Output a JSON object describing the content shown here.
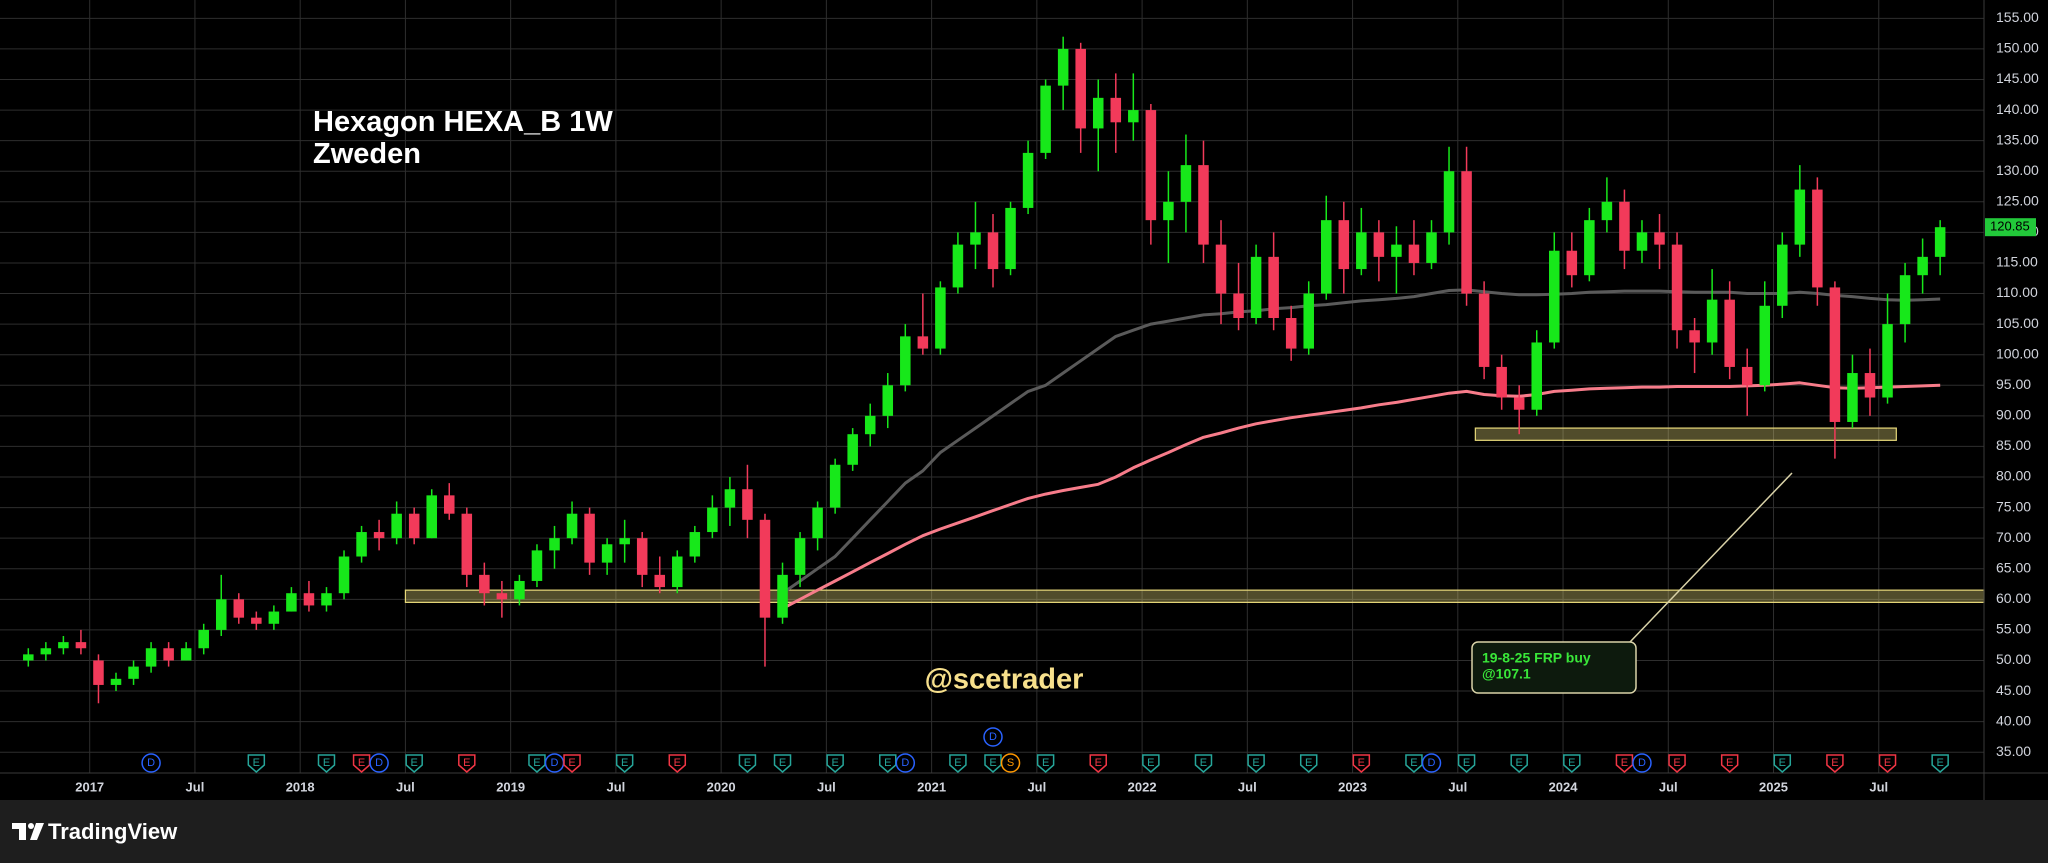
{
  "chart_data": {
    "type": "candlestick",
    "title": "Hexagon HEXA_B 1W",
    "subtitle": "Zweden",
    "watermark": "@scetrader",
    "x": [
      "2016-09",
      "2016-10",
      "2016-11",
      "2016-12",
      "2017-01",
      "2017-02",
      "2017-03",
      "2017-04",
      "2017-05",
      "2017-06",
      "2017-07",
      "2017-08",
      "2017-09",
      "2017-10",
      "2017-11",
      "2017-12",
      "2018-01",
      "2018-02",
      "2018-03",
      "2018-04",
      "2018-05",
      "2018-06",
      "2018-07",
      "2018-08",
      "2018-09",
      "2018-10",
      "2018-11",
      "2018-12",
      "2019-01",
      "2019-02",
      "2019-03",
      "2019-04",
      "2019-05",
      "2019-06",
      "2019-07",
      "2019-08",
      "2019-09",
      "2019-10",
      "2019-11",
      "2019-12",
      "2020-01",
      "2020-02",
      "2020-03",
      "2020-04",
      "2020-05",
      "2020-06",
      "2020-07",
      "2020-08",
      "2020-09",
      "2020-10",
      "2020-11",
      "2020-12",
      "2021-01",
      "2021-02",
      "2021-03",
      "2021-04",
      "2021-05",
      "2021-06",
      "2021-07",
      "2021-08",
      "2021-09",
      "2021-10",
      "2021-11",
      "2021-12",
      "2022-01",
      "2022-02",
      "2022-03",
      "2022-04",
      "2022-05",
      "2022-06",
      "2022-07",
      "2022-08",
      "2022-09",
      "2022-10",
      "2022-11",
      "2022-12",
      "2023-01",
      "2023-02",
      "2023-03",
      "2023-04",
      "2023-05",
      "2023-06",
      "2023-07",
      "2023-08",
      "2023-09",
      "2023-10",
      "2023-11",
      "2023-12",
      "2024-01",
      "2024-02",
      "2024-03",
      "2024-04",
      "2024-05",
      "2024-06",
      "2024-07",
      "2024-08",
      "2024-09",
      "2024-10",
      "2024-11",
      "2024-12",
      "2025-01",
      "2025-02",
      "2025-03",
      "2025-04",
      "2025-05",
      "2025-06",
      "2025-07",
      "2025-08",
      "2025-09",
      "2025-10"
    ],
    "open": [
      50,
      51,
      52,
      53,
      50,
      46,
      47,
      49,
      52,
      50,
      52,
      55,
      60,
      57,
      56,
      58,
      61,
      59,
      61,
      67,
      71,
      70,
      74,
      70,
      77,
      74,
      64,
      61,
      60,
      63,
      68,
      70,
      74,
      66,
      69,
      70,
      64,
      62,
      67,
      71,
      75,
      78,
      73,
      57,
      64,
      70,
      75,
      82,
      87,
      90,
      95,
      103,
      101,
      111,
      118,
      120,
      114,
      124,
      133,
      144,
      150,
      137,
      142,
      138,
      140,
      122,
      125,
      131,
      118,
      110,
      106,
      116,
      106,
      101,
      110,
      122,
      114,
      120,
      116,
      118,
      115,
      120,
      130,
      110,
      98,
      93,
      91,
      102,
      117,
      113,
      122,
      125,
      117,
      120,
      118,
      104,
      102,
      109,
      98,
      95,
      108,
      118,
      127,
      111,
      89,
      97,
      93,
      105,
      113,
      116
    ],
    "high": [
      52,
      53,
      54,
      55,
      51,
      48,
      50,
      53,
      53,
      53,
      56,
      64,
      61,
      58,
      59,
      62,
      63,
      62,
      68,
      72,
      73,
      76,
      75,
      78,
      79,
      75,
      66,
      63,
      64,
      69,
      72,
      76,
      75,
      70,
      73,
      71,
      67,
      68,
      72,
      77,
      80,
      82,
      74,
      66,
      71,
      76,
      83,
      88,
      92,
      97,
      105,
      110,
      112,
      120,
      125,
      123,
      125,
      135,
      145,
      152,
      151,
      145,
      146,
      146,
      141,
      130,
      136,
      135,
      122,
      115,
      118,
      120,
      108,
      112,
      126,
      125,
      124,
      122,
      121,
      122,
      122,
      134,
      134,
      112,
      100,
      95,
      104,
      120,
      120,
      124,
      129,
      127,
      122,
      123,
      120,
      106,
      114,
      112,
      101,
      112,
      120,
      131,
      129,
      112,
      100,
      101,
      110,
      115,
      119,
      122
    ],
    "low": [
      49,
      50,
      51,
      51,
      43,
      45,
      46,
      48,
      49,
      50,
      51,
      54,
      56,
      55,
      55,
      58,
      58,
      58,
      60,
      66,
      68,
      69,
      69,
      70,
      73,
      62,
      59,
      57,
      59,
      62,
      65,
      69,
      64,
      64,
      66,
      62,
      61,
      61,
      66,
      70,
      72,
      70,
      49,
      56,
      62,
      68,
      74,
      81,
      85,
      88,
      94,
      100,
      100,
      110,
      114,
      111,
      113,
      123,
      132,
      140,
      133,
      130,
      133,
      135,
      118,
      115,
      120,
      115,
      105,
      104,
      105,
      104,
      99,
      100,
      109,
      110,
      113,
      112,
      110,
      113,
      114,
      118,
      108,
      96,
      91,
      87,
      90,
      101,
      111,
      112,
      120,
      114,
      115,
      114,
      101,
      97,
      100,
      96,
      90,
      94,
      106,
      116,
      108,
      83,
      88,
      90,
      92,
      102,
      110,
      113
    ],
    "close": [
      51,
      52,
      53,
      52,
      46,
      47,
      49,
      52,
      50,
      52,
      55,
      60,
      57,
      56,
      58,
      61,
      59,
      61,
      67,
      71,
      70,
      74,
      70,
      77,
      74,
      64,
      61,
      60,
      63,
      68,
      70,
      74,
      66,
      69,
      70,
      64,
      62,
      67,
      71,
      75,
      78,
      73,
      57,
      64,
      70,
      75,
      82,
      87,
      90,
      95,
      103,
      101,
      111,
      118,
      120,
      114,
      124,
      133,
      144,
      150,
      137,
      142,
      138,
      140,
      122,
      125,
      131,
      118,
      110,
      106,
      116,
      106,
      101,
      110,
      122,
      114,
      120,
      116,
      118,
      115,
      120,
      130,
      110,
      98,
      93,
      91,
      102,
      117,
      113,
      122,
      125,
      117,
      120,
      118,
      104,
      102,
      109,
      98,
      95,
      108,
      118,
      127,
      111,
      89,
      97,
      93,
      105,
      113,
      116,
      120.85
    ],
    "up_color": "#17e81a",
    "down_color": "#f23a5a",
    "series": [
      {
        "color": "#5a5a5a",
        "values": [
          null,
          null,
          null,
          null,
          null,
          null,
          null,
          null,
          null,
          null,
          null,
          null,
          null,
          null,
          null,
          null,
          null,
          null,
          null,
          null,
          null,
          null,
          null,
          null,
          null,
          null,
          null,
          null,
          null,
          null,
          null,
          null,
          null,
          null,
          null,
          null,
          null,
          null,
          null,
          null,
          null,
          null,
          null,
          61,
          63,
          65,
          67,
          70,
          73,
          76,
          79,
          81,
          84,
          86,
          88,
          90,
          92,
          94,
          95,
          97,
          99,
          101,
          103,
          104,
          105,
          105.5,
          106,
          106.5,
          106.7,
          107,
          107.2,
          107.5,
          107.7,
          108,
          108.2,
          108.5,
          108.8,
          109,
          109.2,
          109.5,
          110,
          110.5,
          110.6,
          110.3,
          110,
          109.8,
          109.8,
          109.9,
          110,
          110.2,
          110.3,
          110.4,
          110.4,
          110.4,
          110.3,
          110.2,
          110.2,
          110.2,
          110,
          110,
          110,
          110.2,
          110,
          109.7,
          109.5,
          109.2,
          109,
          108.9,
          109,
          109.1
        ]
      },
      {
        "color": "#f77c8a",
        "values": [
          null,
          null,
          null,
          null,
          null,
          null,
          null,
          null,
          null,
          null,
          null,
          null,
          null,
          null,
          null,
          null,
          null,
          null,
          null,
          null,
          null,
          null,
          null,
          null,
          null,
          null,
          null,
          null,
          null,
          null,
          null,
          null,
          null,
          null,
          null,
          null,
          null,
          null,
          null,
          null,
          null,
          null,
          null,
          58.5,
          60,
          61.5,
          63,
          64.5,
          66,
          67.5,
          69,
          70.4,
          71.5,
          72.5,
          73.5,
          74.5,
          75.5,
          76.5,
          77.2,
          77.8,
          78.3,
          78.8,
          80,
          81.5,
          82.8,
          84,
          85.3,
          86.5,
          87.2,
          88,
          88.7,
          89.2,
          89.7,
          90.1,
          90.5,
          90.9,
          91.3,
          91.8,
          92.2,
          92.7,
          93.2,
          93.7,
          94,
          93.5,
          93.3,
          93.2,
          93.5,
          94,
          94.2,
          94.4,
          94.5,
          94.6,
          94.7,
          94.7,
          94.8,
          94.8,
          94.8,
          94.8,
          94.9,
          95,
          95.2,
          95.4,
          95,
          94.6,
          94.5,
          94.6,
          94.7,
          94.8,
          94.9,
          95
        ]
      }
    ],
    "zones": [
      {
        "x": [
          "2018-07",
          "2026-01"
        ],
        "y": [
          59.5,
          61.5
        ],
        "color": "#e8d97a"
      },
      {
        "x": [
          "2023-08",
          "2025-08"
        ],
        "y": [
          86,
          88
        ],
        "color": "#e8d97a"
      }
    ],
    "annotations": [
      {
        "lines": [
          "19-8-25 FRP buy",
          "@107.1"
        ],
        "color": "#39e639"
      }
    ],
    "events": [
      {
        "x": "2017-04",
        "label": "D",
        "color": "#2962ff"
      },
      {
        "x": "2017-10",
        "label": "E",
        "color": "#26a69a"
      },
      {
        "x": "2018-02",
        "label": "E",
        "color": "#26a69a"
      },
      {
        "x": "2018-04",
        "label": "E",
        "color": "#f23645"
      },
      {
        "x": "2018-05",
        "label": "D",
        "color": "#2962ff"
      },
      {
        "x": "2018-07",
        "label": "E",
        "color": "#26a69a"
      },
      {
        "x": "2018-10",
        "label": "E",
        "color": "#f23645"
      },
      {
        "x": "2019-02",
        "label": "E",
        "color": "#26a69a"
      },
      {
        "x": "2019-03",
        "label": "D",
        "color": "#2962ff"
      },
      {
        "x": "2019-04",
        "label": "E",
        "color": "#f23645"
      },
      {
        "x": "2019-07",
        "label": "E",
        "color": "#26a69a"
      },
      {
        "x": "2019-10",
        "label": "E",
        "color": "#f23645"
      },
      {
        "x": "2020-02",
        "label": "E",
        "color": "#26a69a"
      },
      {
        "x": "2020-04",
        "label": "E",
        "color": "#26a69a"
      },
      {
        "x": "2020-07",
        "label": "E",
        "color": "#26a69a"
      },
      {
        "x": "2020-10",
        "label": "E",
        "color": "#26a69a"
      },
      {
        "x": "2020-11",
        "label": "D",
        "color": "#2962ff"
      },
      {
        "x": "2021-02",
        "label": "E",
        "color": "#26a69a"
      },
      {
        "x": "2021-04",
        "label": "E",
        "color": "#26a69a"
      },
      {
        "x": "2021-04",
        "label": "D",
        "color": "#2962ff"
      },
      {
        "x": "2021-05",
        "label": "S",
        "color": "#ff9800"
      },
      {
        "x": "2021-07",
        "label": "E",
        "color": "#26a69a"
      },
      {
        "x": "2021-10",
        "label": "E",
        "color": "#f23645"
      },
      {
        "x": "2022-01",
        "label": "E",
        "color": "#26a69a"
      },
      {
        "x": "2022-04",
        "label": "E",
        "color": "#26a69a"
      },
      {
        "x": "2022-07",
        "label": "E",
        "color": "#26a69a"
      },
      {
        "x": "2022-10",
        "label": "E",
        "color": "#26a69a"
      },
      {
        "x": "2023-01",
        "label": "E",
        "color": "#f23645"
      },
      {
        "x": "2023-04",
        "label": "E",
        "color": "#26a69a"
      },
      {
        "x": "2023-05",
        "label": "D",
        "color": "#2962ff"
      },
      {
        "x": "2023-07",
        "label": "E",
        "color": "#26a69a"
      },
      {
        "x": "2023-10",
        "label": "E",
        "color": "#26a69a"
      },
      {
        "x": "2024-01",
        "label": "E",
        "color": "#26a69a"
      },
      {
        "x": "2024-04",
        "label": "E",
        "color": "#f23645"
      },
      {
        "x": "2024-05",
        "label": "D",
        "color": "#2962ff"
      },
      {
        "x": "2024-07",
        "label": "E",
        "color": "#f23645"
      },
      {
        "x": "2024-10",
        "label": "E",
        "color": "#f23645"
      },
      {
        "x": "2025-01",
        "label": "E",
        "color": "#26a69a"
      },
      {
        "x": "2025-04",
        "label": "E",
        "color": "#f23645"
      },
      {
        "x": "2025-07",
        "label": "E",
        "color": "#f23645"
      },
      {
        "x": "2025-10",
        "label": "E",
        "color": "#26a69a"
      }
    ],
    "xlim": [
      "2016-08",
      "2026-01"
    ],
    "ylim": [
      31.6,
      158
    ],
    "xticks": [
      {
        "value": "2017-01",
        "label": "2017"
      },
      {
        "value": "2017-07",
        "label": "Jul"
      },
      {
        "value": "2018-01",
        "label": "2018"
      },
      {
        "value": "2018-07",
        "label": "Jul"
      },
      {
        "value": "2019-01",
        "label": "2019"
      },
      {
        "value": "2019-07",
        "label": "Jul"
      },
      {
        "value": "2020-01",
        "label": "2020"
      },
      {
        "value": "2020-07",
        "label": "Jul"
      },
      {
        "value": "2021-01",
        "label": "2021"
      },
      {
        "value": "2021-07",
        "label": "Jul"
      },
      {
        "value": "2022-01",
        "label": "2022"
      },
      {
        "value": "2022-07",
        "label": "Jul"
      },
      {
        "value": "2023-01",
        "label": "2023"
      },
      {
        "value": "2023-07",
        "label": "Jul"
      },
      {
        "value": "2024-01",
        "label": "2024"
      },
      {
        "value": "2024-07",
        "label": "Jul"
      },
      {
        "value": "2025-01",
        "label": "2025"
      },
      {
        "value": "2025-07",
        "label": "Jul"
      }
    ],
    "yticks": [
      {
        "value": 35,
        "label": "35.00"
      },
      {
        "value": 40,
        "label": "40.00"
      },
      {
        "value": 45,
        "label": "45.00"
      },
      {
        "value": 50,
        "label": "50.00"
      },
      {
        "value": 55,
        "label": "55.00"
      },
      {
        "value": 60,
        "label": "60.00"
      },
      {
        "value": 65,
        "label": "65.00"
      },
      {
        "value": 70,
        "label": "70.00"
      },
      {
        "value": 75,
        "label": "75.00"
      },
      {
        "value": 80,
        "label": "80.00"
      },
      {
        "value": 85,
        "label": "85.00"
      },
      {
        "value": 90,
        "label": "90.00"
      },
      {
        "value": 95,
        "label": "95.00"
      },
      {
        "value": 100,
        "label": "100.00"
      },
      {
        "value": 105,
        "label": "105.00"
      },
      {
        "value": 110,
        "label": "110.00"
      },
      {
        "value": 115,
        "label": "115.00"
      },
      {
        "value": 120,
        "label": "120.00"
      },
      {
        "value": 125,
        "label": "125.00"
      },
      {
        "value": 130,
        "label": "130.00"
      },
      {
        "value": 135,
        "label": "135.00"
      },
      {
        "value": 140,
        "label": "140.00"
      },
      {
        "value": 145,
        "label": "145.00"
      },
      {
        "value": 150,
        "label": "150.00"
      },
      {
        "value": 155,
        "label": "155.00"
      }
    ],
    "grid": true,
    "price_label_color": "#22c93a"
  },
  "branding": "TradingView"
}
